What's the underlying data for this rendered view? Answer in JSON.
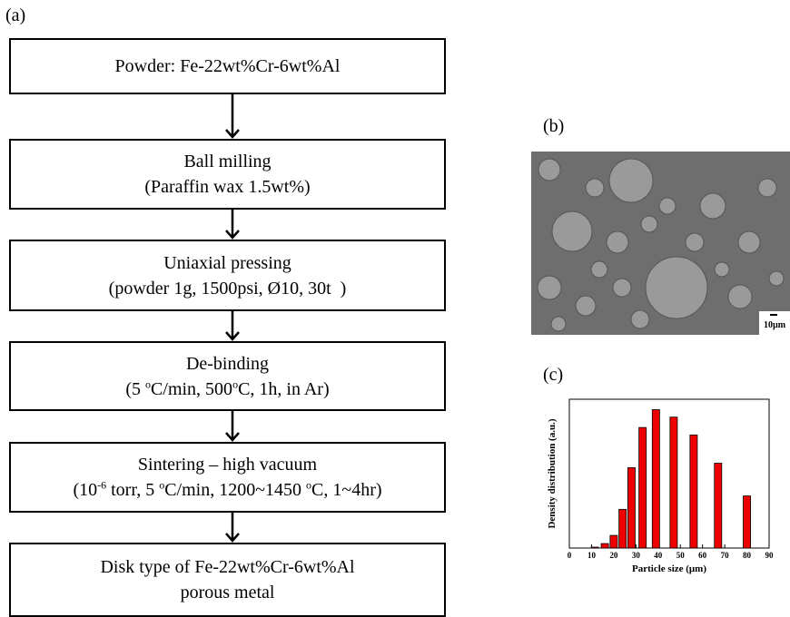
{
  "panel_a": {
    "label": "(a)",
    "steps": [
      [
        [
          "Powder: Fe-22wt%Cr-6wt%Al"
        ]
      ],
      [
        [
          "Ball milling"
        ],
        [
          "(Paraffin wax 1.5wt%)"
        ]
      ],
      [
        [
          "Uniaxial pressing"
        ],
        [
          "(powder 1g, 1500psi, Ø10, 30t  )"
        ]
      ],
      [
        [
          "De-binding"
        ],
        [
          "(5 ",
          {
            "sup": "o"
          },
          "C/min, 500",
          {
            "sup": "o"
          },
          "C, 1h, in Ar)"
        ]
      ],
      [
        [
          "Sintering – high vacuum"
        ],
        [
          "(10",
          {
            "sup": "-6"
          },
          " torr, 5 ",
          {
            "sup": "o"
          },
          "C/min, 1200~1450 ",
          {
            "sup": "o"
          },
          "C, 1~4hr)"
        ]
      ],
      [
        [
          "Disk type of Fe-22wt%Cr-6wt%Al"
        ],
        [
          "porous metal"
        ]
      ]
    ]
  },
  "panel_b": {
    "label": "(b)",
    "scale_bar": "10µm"
  },
  "panel_c": {
    "label": "(c)"
  },
  "chart_data": {
    "type": "bar",
    "x_label": "Particle size (μm)",
    "y_label": "Density distribution (a.u.)",
    "x": [
      11.5,
      16,
      20,
      24,
      28,
      33,
      39,
      47,
      56,
      67,
      80
    ],
    "values": [
      0.6,
      3,
      8.5,
      26,
      54,
      81,
      93,
      88,
      76,
      57,
      35
    ],
    "color": "#ee0000",
    "xlim": [
      0,
      90
    ],
    "xticks": [
      0,
      10,
      20,
      30,
      40,
      50,
      60,
      70,
      80,
      90
    ],
    "ylim": [
      0,
      100
    ]
  }
}
